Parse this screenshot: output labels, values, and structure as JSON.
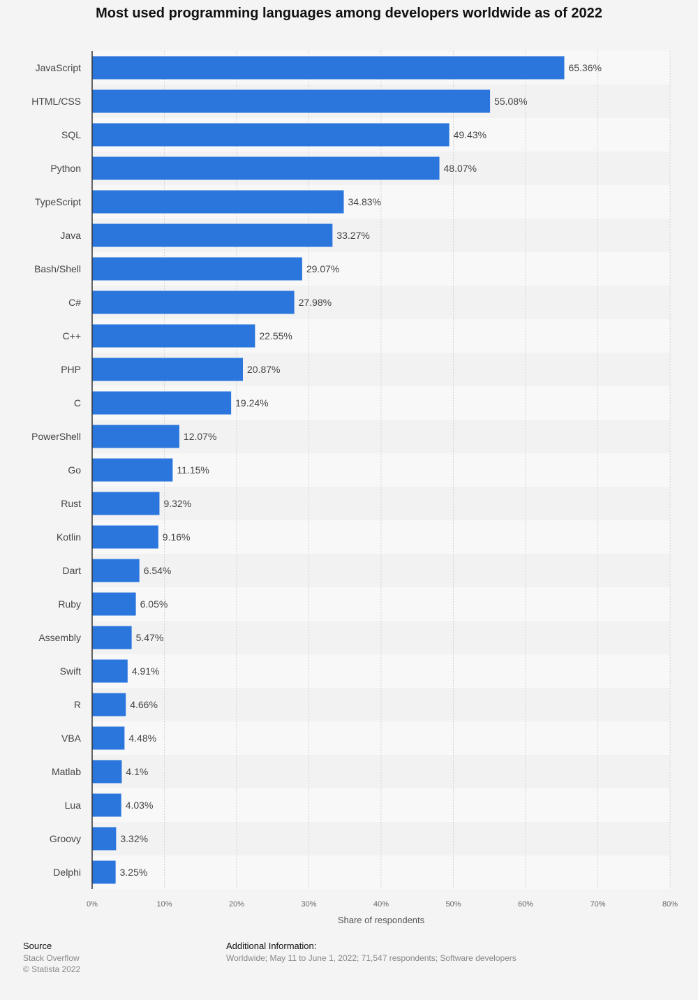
{
  "chart_data": {
    "type": "bar",
    "orientation": "horizontal",
    "title": "Most used programming languages among developers worldwide as of 2022",
    "xlabel": "Share of respondents",
    "ylabel": "",
    "xlim": [
      0,
      80
    ],
    "x_ticks": [
      "0%",
      "10%",
      "20%",
      "30%",
      "40%",
      "50%",
      "60%",
      "70%",
      "80%"
    ],
    "grid": true,
    "bar_color": "#2a76dd",
    "categories": [
      "JavaScript",
      "HTML/CSS",
      "SQL",
      "Python",
      "TypeScript",
      "Java",
      "Bash/Shell",
      "C#",
      "C++",
      "PHP",
      "C",
      "PowerShell",
      "Go",
      "Rust",
      "Kotlin",
      "Dart",
      "Ruby",
      "Assembly",
      "Swift",
      "R",
      "VBA",
      "Matlab",
      "Lua",
      "Groovy",
      "Delphi"
    ],
    "values": [
      65.36,
      55.08,
      49.43,
      48.07,
      34.83,
      33.27,
      29.07,
      27.98,
      22.55,
      20.87,
      19.24,
      12.07,
      11.15,
      9.32,
      9.16,
      6.54,
      6.05,
      5.47,
      4.91,
      4.66,
      4.48,
      4.1,
      4.03,
      3.32,
      3.25
    ],
    "value_labels": [
      "65.36%",
      "55.08%",
      "49.43%",
      "48.07%",
      "34.83%",
      "33.27%",
      "29.07%",
      "27.98%",
      "22.55%",
      "20.87%",
      "19.24%",
      "12.07%",
      "11.15%",
      "9.32%",
      "9.16%",
      "6.54%",
      "6.05%",
      "5.47%",
      "4.91%",
      "4.66%",
      "4.48%",
      "4.1%",
      "4.03%",
      "3.32%",
      "3.25%"
    ]
  },
  "footer": {
    "source_heading": "Source",
    "source_lines": [
      "Stack Overflow",
      "© Statista 2022"
    ],
    "info_heading": "Additional Information:",
    "info_text": "Worldwide; May 11 to June 1, 2022; 71,547 respondents; Software developers"
  }
}
